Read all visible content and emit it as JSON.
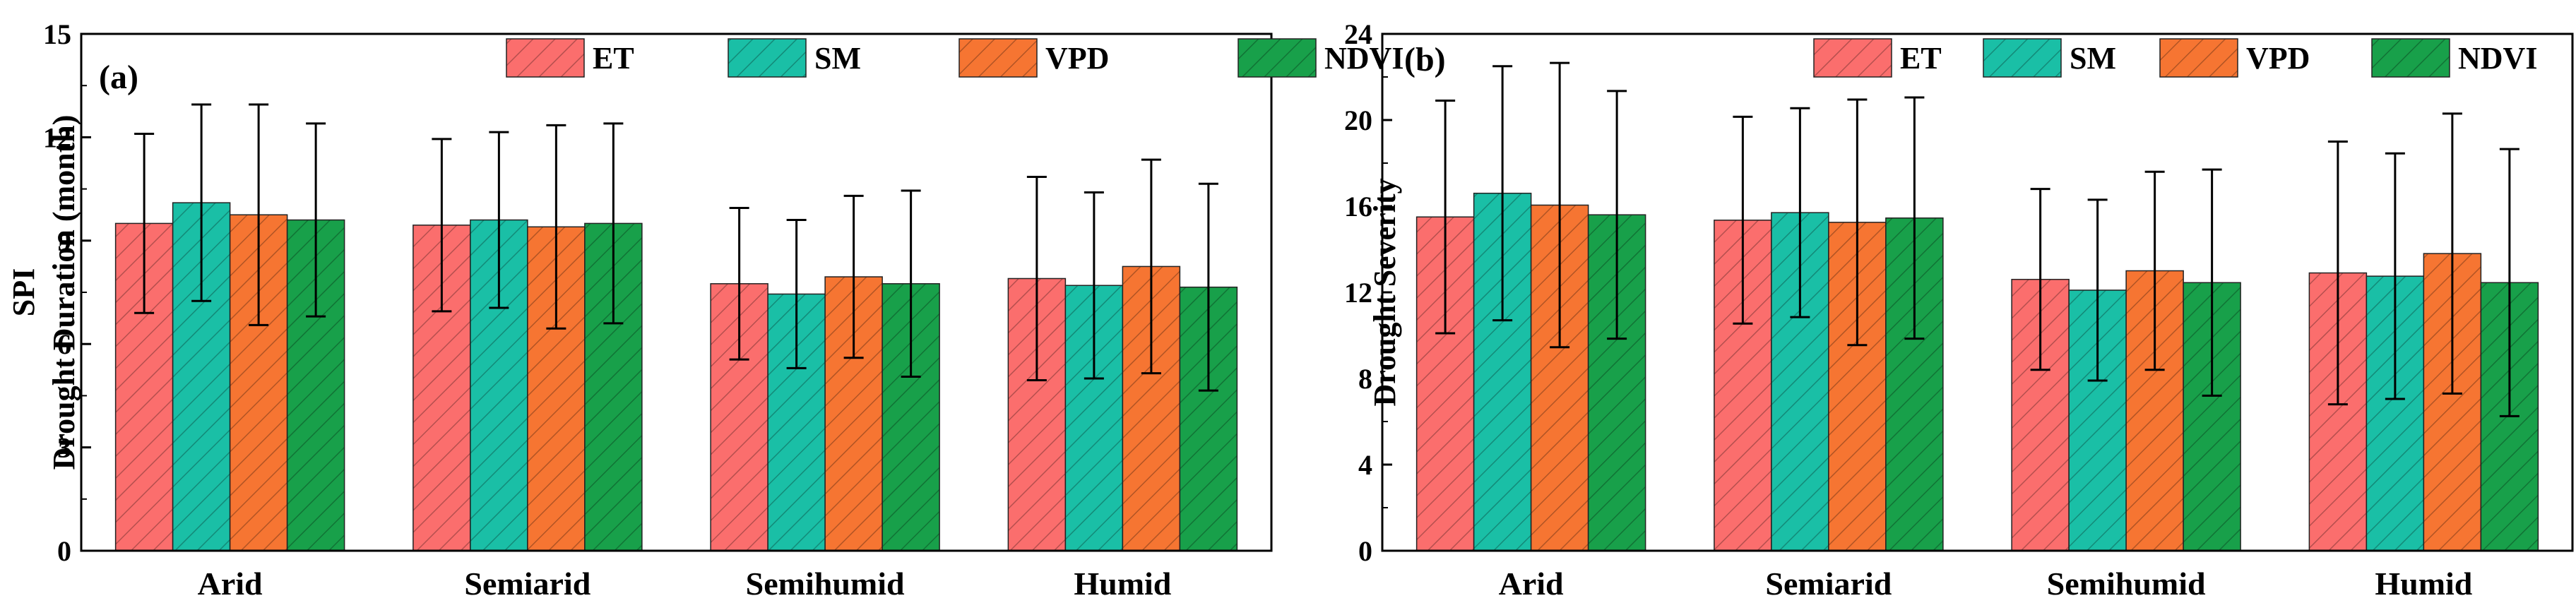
{
  "chart_data": [
    {
      "type": "bar",
      "panel": "(a)",
      "categories": [
        "Arid",
        "Semiarid",
        "Semihumid",
        "Humid"
      ],
      "ylabel_lines": [
        "SPI",
        "Drought Duration (month)"
      ],
      "ylim": [
        0,
        15
      ],
      "yticks": [
        "0",
        "3",
        "6",
        "9",
        "12",
        "15"
      ],
      "series": [
        {
          "name": "ET",
          "values": [
            9.5,
            9.45,
            7.75,
            7.9
          ],
          "errors": [
            2.6,
            2.5,
            2.2,
            2.95
          ]
        },
        {
          "name": "SM",
          "values": [
            10.1,
            9.6,
            7.45,
            7.7
          ],
          "errors": [
            2.85,
            2.55,
            2.15,
            2.7
          ]
        },
        {
          "name": "VPD",
          "values": [
            9.75,
            9.4,
            7.95,
            8.25
          ],
          "errors": [
            3.2,
            2.95,
            2.35,
            3.1
          ]
        },
        {
          "name": "NDVI",
          "values": [
            9.6,
            9.5,
            7.75,
            7.65
          ],
          "errors": [
            2.8,
            2.9,
            2.7,
            3.0
          ]
        }
      ]
    },
    {
      "type": "bar",
      "panel": "(b)",
      "categories": [
        "Arid",
        "Semiarid",
        "Semihumid",
        "Humid"
      ],
      "ylabel_lines": [
        "Drought Severity"
      ],
      "ylim": [
        0,
        24
      ],
      "yticks": [
        "0",
        "4",
        "8",
        "12",
        "16",
        "20",
        "24"
      ],
      "series": [
        {
          "name": "ET",
          "values": [
            15.5,
            15.35,
            12.6,
            12.9
          ],
          "errors": [
            5.4,
            4.8,
            4.2,
            6.1
          ]
        },
        {
          "name": "SM",
          "values": [
            16.6,
            15.7,
            12.1,
            12.75
          ],
          "errors": [
            5.9,
            4.85,
            4.2,
            5.7
          ]
        },
        {
          "name": "VPD",
          "values": [
            16.05,
            15.25,
            13.0,
            13.8
          ],
          "errors": [
            6.6,
            5.7,
            4.6,
            6.5
          ]
        },
        {
          "name": "NDVI",
          "values": [
            15.6,
            15.45,
            12.45,
            12.45
          ],
          "errors": [
            5.75,
            5.6,
            5.25,
            6.2
          ]
        }
      ]
    }
  ],
  "colors": {
    "ET": "#fb6e6d",
    "SM": "#1abfa6",
    "VPD": "#f67532",
    "NDVI": "#18a04a"
  }
}
